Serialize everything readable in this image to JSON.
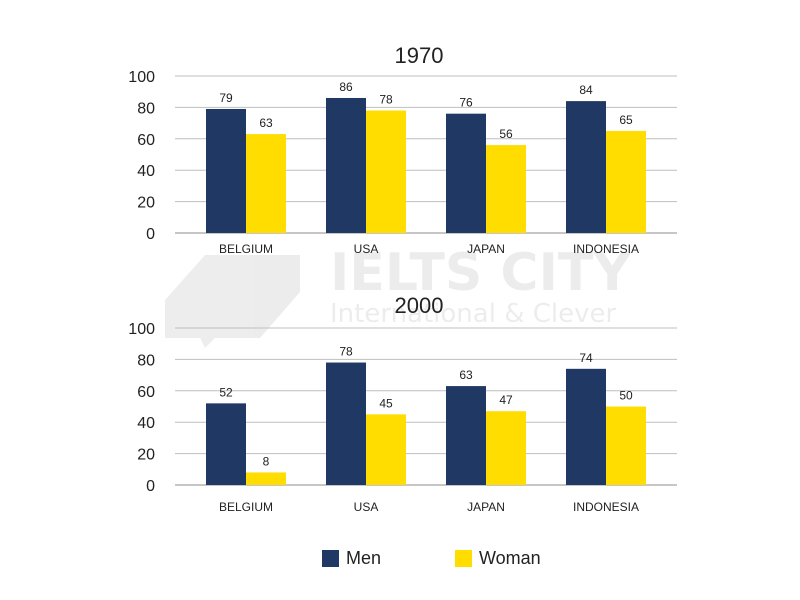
{
  "watermark": {
    "line1": "IELTS CITY",
    "line2": "International & Clever"
  },
  "colors": {
    "men": "#1f3864",
    "woman": "#ffdd00",
    "grid": "#bfbfbf",
    "text": "#222222"
  },
  "chart_data": [
    {
      "type": "bar",
      "title": "1970",
      "categories": [
        "BELGIUM",
        "USA",
        "JAPAN",
        "INDONESIA"
      ],
      "series": [
        {
          "name": "Men",
          "values": [
            79,
            86,
            76,
            84
          ]
        },
        {
          "name": "Woman",
          "values": [
            63,
            78,
            56,
            65
          ]
        }
      ],
      "ylim": [
        0,
        100
      ],
      "yticks": [
        "0",
        "20",
        "40",
        "60",
        "80",
        "100"
      ],
      "grid": true,
      "legend": "bottom"
    },
    {
      "type": "bar",
      "title": "2000",
      "categories": [
        "BELGIUM",
        "USA",
        "JAPAN",
        "INDONESIA"
      ],
      "series": [
        {
          "name": "Men",
          "values": [
            52,
            78,
            63,
            74
          ]
        },
        {
          "name": "Woman",
          "values": [
            8,
            45,
            47,
            50
          ]
        }
      ],
      "ylim": [
        0,
        100
      ],
      "yticks": [
        "0",
        "20",
        "40",
        "60",
        "80",
        "100"
      ],
      "grid": true,
      "legend": "bottom"
    }
  ]
}
